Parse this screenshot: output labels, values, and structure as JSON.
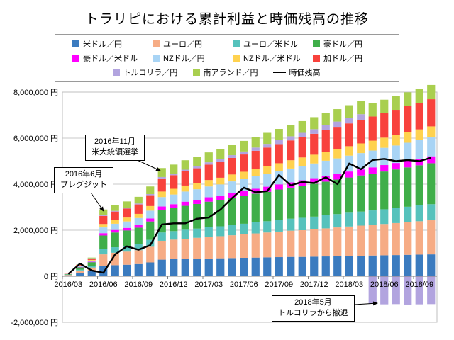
{
  "title": "トラリピにおける累計利益と時価残高の推移",
  "chart_data": {
    "type": "bar",
    "stacked": true,
    "unit": "円",
    "categories": [
      "2016/03",
      "2016/04",
      "2016/05",
      "2016/06",
      "2016/07",
      "2016/08",
      "2016/09",
      "2016/10",
      "2016/11",
      "2016/12",
      "2017/01",
      "2017/02",
      "2017/03",
      "2017/04",
      "2017/05",
      "2017/06",
      "2017/07",
      "2017/08",
      "2017/09",
      "2017/10",
      "2017/11",
      "2017/12",
      "2018/01",
      "2018/02",
      "2018/03",
      "2018/04",
      "2018/05",
      "2018/06",
      "2018/07",
      "2018/08",
      "2018/09",
      "2018/10"
    ],
    "x_tick_labels": [
      "2016/03",
      "2016/06",
      "2016/09",
      "2016/12",
      "2017/03",
      "2017/06",
      "2017/09",
      "2017/12",
      "2018/03",
      "2018/06",
      "2018/09"
    ],
    "y_axis": {
      "min": -2000000,
      "max": 8000000,
      "step": 2000000,
      "tick_labels": [
        "8,000,000 円",
        "6,000,000 円",
        "4,000,000 円",
        "2,000,000 円",
        "0 円",
        "-2,000,000 円"
      ]
    },
    "series": [
      {
        "name": "米ドル／円",
        "color": "#3B7BBF",
        "values": [
          40000,
          150000,
          220000,
          450000,
          480000,
          500000,
          530000,
          600000,
          720000,
          740000,
          750000,
          760000,
          770000,
          780000,
          790000,
          800000,
          810000,
          820000,
          830000,
          840000,
          840000,
          850000,
          860000,
          870000,
          880000,
          890000,
          900000,
          910000,
          920000,
          930000,
          940000,
          950000
        ]
      },
      {
        "name": "ユーロ／円",
        "color": "#F6AC85",
        "values": [
          20000,
          100000,
          160000,
          500000,
          540000,
          570000,
          600000,
          680000,
          820000,
          850000,
          880000,
          910000,
          940000,
          960000,
          990000,
          1020000,
          1050000,
          1080000,
          1110000,
          1140000,
          1160000,
          1190000,
          1220000,
          1250000,
          1280000,
          1310000,
          1330000,
          1360000,
          1390000,
          1420000,
          1450000,
          1480000
        ]
      },
      {
        "name": "ユーロ／米ドル",
        "color": "#56C2BC",
        "values": [
          10000,
          40000,
          70000,
          220000,
          240000,
          250000,
          270000,
          300000,
          360000,
          370000,
          390000,
          400000,
          420000,
          430000,
          450000,
          460000,
          480000,
          490000,
          510000,
          520000,
          540000,
          550000,
          570000,
          580000,
          600000,
          610000,
          630000,
          640000,
          660000,
          670000,
          690000,
          700000
        ]
      },
      {
        "name": "豪ドル／円",
        "color": "#3FAE49",
        "values": [
          20000,
          100000,
          160000,
          600000,
          640000,
          670000,
          710000,
          800000,
          970000,
          1000000,
          1040000,
          1070000,
          1110000,
          1140000,
          1180000,
          1210000,
          1250000,
          1280000,
          1320000,
          1350000,
          1390000,
          1430000,
          1460000,
          1500000,
          1530000,
          1570000,
          1600000,
          1640000,
          1670000,
          1710000,
          1740000,
          1780000
        ]
      },
      {
        "name": "豪ドル／米ドル",
        "color": "#FF00FF",
        "values": [
          0,
          10000,
          20000,
          100000,
          110000,
          110000,
          120000,
          130000,
          160000,
          170000,
          180000,
          180000,
          190000,
          190000,
          200000,
          210000,
          210000,
          220000,
          220000,
          230000,
          240000,
          240000,
          250000,
          250000,
          260000,
          260000,
          270000,
          280000,
          280000,
          290000,
          290000,
          300000
        ]
      },
      {
        "name": "NZドル／円",
        "color": "#A8D4F5",
        "values": [
          10000,
          30000,
          50000,
          250000,
          270000,
          280000,
          300000,
          340000,
          410000,
          420000,
          440000,
          460000,
          470000,
          490000,
          510000,
          530000,
          550000,
          570000,
          580000,
          600000,
          620000,
          640000,
          660000,
          670000,
          690000,
          710000,
          730000,
          750000,
          760000,
          780000,
          800000,
          820000
        ]
      },
      {
        "name": "NZドル／米ドル",
        "color": "#FFD24F",
        "values": [
          0,
          20000,
          30000,
          150000,
          160000,
          170000,
          180000,
          200000,
          240000,
          250000,
          260000,
          270000,
          280000,
          290000,
          300000,
          310000,
          320000,
          330000,
          340000,
          360000,
          370000,
          380000,
          390000,
          400000,
          410000,
          420000,
          430000,
          440000,
          450000,
          460000,
          470000,
          480000
        ]
      },
      {
        "name": "加ドル／円",
        "color": "#F8423C",
        "values": [
          10000,
          40000,
          60000,
          350000,
          370000,
          390000,
          410000,
          470000,
          570000,
          590000,
          620000,
          640000,
          670000,
          700000,
          720000,
          750000,
          780000,
          800000,
          830000,
          860000,
          880000,
          910000,
          940000,
          970000,
          990000,
          1020000,
          1050000,
          1070000,
          1100000,
          1130000,
          1150000,
          1180000
        ]
      },
      {
        "name": "トルコリラ／円",
        "color": "#B2A4DF",
        "values": [
          0,
          0,
          10000,
          30000,
          30000,
          40000,
          40000,
          50000,
          60000,
          60000,
          70000,
          80000,
          100000,
          110000,
          120000,
          130000,
          140000,
          160000,
          170000,
          180000,
          190000,
          200000,
          210000,
          230000,
          240000,
          250000,
          -1200000,
          -1220000,
          -1210000,
          -1230000,
          -1220000,
          -1210000
        ]
      },
      {
        "name": "南アランド／円",
        "color": "#A9CF4F",
        "values": [
          0,
          10000,
          30000,
          250000,
          260000,
          270000,
          290000,
          330000,
          390000,
          400000,
          410000,
          420000,
          430000,
          440000,
          450000,
          460000,
          470000,
          480000,
          490000,
          500000,
          510000,
          520000,
          530000,
          540000,
          550000,
          560000,
          570000,
          580000,
          590000,
          600000,
          610000,
          620000
        ]
      }
    ],
    "line_series": {
      "name": "時価残高",
      "color": "#000000",
      "values": [
        100000,
        550000,
        250000,
        150000,
        950000,
        1300000,
        1150000,
        1350000,
        2250000,
        2300000,
        2300000,
        2500000,
        2550000,
        2900000,
        3400000,
        3850000,
        3650000,
        3700000,
        4400000,
        3950000,
        4100000,
        4050000,
        4300000,
        4000000,
        4900000,
        4650000,
        5050000,
        5100000,
        5000000,
        5050000,
        5000000,
        5150000
      ]
    },
    "annotations": [
      {
        "line1": "2016年6月",
        "line2": "ブレグジット",
        "target": "2016/06"
      },
      {
        "line1": "2016年11月",
        "line2": "米大統領選挙",
        "target": "2016/11"
      },
      {
        "line1": "2018年5月",
        "line2": "トルコリラから撤退",
        "target": "2018/05"
      }
    ]
  }
}
